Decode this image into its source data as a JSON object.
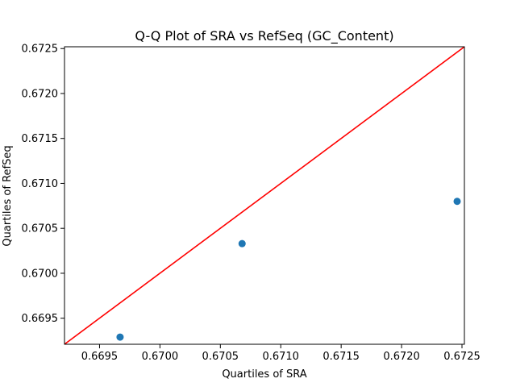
{
  "chart_data": {
    "type": "scatter",
    "title": "Q-Q Plot of SRA vs RefSeq (GC_Content)",
    "xlabel": "Quartiles of SRA",
    "ylabel": "Quartiles of RefSeq",
    "xlim": [
      0.66921,
      0.67252
    ],
    "ylim": [
      0.66921,
      0.67252
    ],
    "xticks": [
      "0.6695",
      "0.6700",
      "0.6705",
      "0.6710",
      "0.6715",
      "0.6720",
      "0.6725"
    ],
    "yticks": [
      "0.6695",
      "0.6700",
      "0.6705",
      "0.6710",
      "0.6715",
      "0.6720",
      "0.6725"
    ],
    "grid": false,
    "points": {
      "x": [
        0.66967,
        0.67068,
        0.67246
      ],
      "y": [
        0.66929,
        0.67033,
        0.6708
      ],
      "color": "#1f77b4"
    },
    "reference_line": {
      "from": [
        0.66921,
        0.66921
      ],
      "to": [
        0.67252,
        0.67252
      ],
      "color": "#ff0000"
    }
  }
}
